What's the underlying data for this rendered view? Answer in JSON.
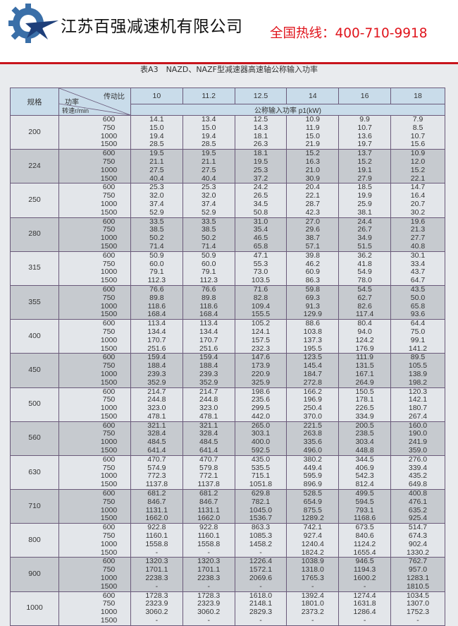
{
  "header": {
    "company": "江苏百强减速机有限公司",
    "hotline": "全国热线：400-710-9918",
    "brand_colors": {
      "logo": "#3a6fa8",
      "hotline": "#e0141c",
      "rule": "#c8141c"
    }
  },
  "table_title": "表A3　NAZD、NAZF型减速器高速轴公称输入功率",
  "table": {
    "col_size": "规格",
    "diag_ratio": "传动比",
    "diag_power": "功率",
    "diag_speed": "转速r/min",
    "ratios": [
      "10",
      "11.2",
      "12.5",
      "14",
      "16",
      "18"
    ],
    "unit_label": "公称输入功率 p1(kW)",
    "speeds": [
      "600",
      "750",
      "1000",
      "1500"
    ],
    "groups": [
      {
        "size": "200",
        "values": [
          [
            "14.1",
            "13.4",
            "12.5",
            "10.9",
            "9.9",
            "7.9"
          ],
          [
            "15.0",
            "15.0",
            "14.3",
            "11.9",
            "10.7",
            "8.5"
          ],
          [
            "19.4",
            "19.4",
            "18.1",
            "15.0",
            "13.6",
            "10.7"
          ],
          [
            "28.5",
            "28.5",
            "26.3",
            "21.9",
            "19.7",
            "15.6"
          ]
        ]
      },
      {
        "size": "224",
        "values": [
          [
            "19.5",
            "19.5",
            "18.1",
            "15.2",
            "13.7",
            "10.9"
          ],
          [
            "21.1",
            "21.1",
            "19.5",
            "16.3",
            "15.2",
            "12.0"
          ],
          [
            "27.5",
            "27.5",
            "25.3",
            "21.0",
            "19.1",
            "15.2"
          ],
          [
            "40.4",
            "40.4",
            "37.2",
            "30.9",
            "27.9",
            "22.1"
          ]
        ]
      },
      {
        "size": "250",
        "values": [
          [
            "25.3",
            "25.3",
            "24.2",
            "20.4",
            "18.5",
            "14.7"
          ],
          [
            "32.0",
            "32.0",
            "26.5",
            "22.1",
            "19.9",
            "16.4"
          ],
          [
            "37.4",
            "37.4",
            "34.5",
            "28.7",
            "25.9",
            "20.7"
          ],
          [
            "52.9",
            "52.9",
            "50.8",
            "42.3",
            "38.1",
            "30.2"
          ]
        ]
      },
      {
        "size": "280",
        "values": [
          [
            "33.5",
            "33.5",
            "31.0",
            "27.0",
            "24.4",
            "19.6"
          ],
          [
            "38.5",
            "38.5",
            "35.4",
            "29.6",
            "26.7",
            "21.3"
          ],
          [
            "50.2",
            "50.2",
            "46.5",
            "38.7",
            "34.9",
            "27.7"
          ],
          [
            "71.4",
            "71.4",
            "65.8",
            "57.1",
            "51.5",
            "40.8"
          ]
        ]
      },
      {
        "size": "315",
        "values": [
          [
            "50.9",
            "50.9",
            "47.1",
            "39.8",
            "36.2",
            "30.1"
          ],
          [
            "60.0",
            "60.0",
            "55.3",
            "46.2",
            "41.8",
            "33.4"
          ],
          [
            "79.1",
            "79.1",
            "73.0",
            "60.9",
            "54.9",
            "43.7"
          ],
          [
            "112.3",
            "112.3",
            "103.5",
            "86.3",
            "78.0",
            "64.7"
          ]
        ]
      },
      {
        "size": "355",
        "values": [
          [
            "76.6",
            "76.6",
            "71.6",
            "59.8",
            "54.5",
            "43.5"
          ],
          [
            "89.8",
            "89.8",
            "82.8",
            "69.3",
            "62.7",
            "50.0"
          ],
          [
            "118.6",
            "118.6",
            "109.4",
            "91.3",
            "82.6",
            "65.8"
          ],
          [
            "168.4",
            "168.4",
            "155.5",
            "129.9",
            "117.4",
            "93.6"
          ]
        ]
      },
      {
        "size": "400",
        "values": [
          [
            "113.4",
            "113.4",
            "105.2",
            "88.6",
            "80.4",
            "64.4"
          ],
          [
            "134.4",
            "134.4",
            "124.1",
            "103.8",
            "94.0",
            "75.0"
          ],
          [
            "170.7",
            "170.7",
            "157.5",
            "137.3",
            "124.2",
            "99.1"
          ],
          [
            "251.6",
            "251.6",
            "232.3",
            "195.5",
            "176.9",
            "141.2"
          ]
        ]
      },
      {
        "size": "450",
        "values": [
          [
            "159.4",
            "159.4",
            "147.6",
            "123.5",
            "111.9",
            "89.5"
          ],
          [
            "188.4",
            "188.4",
            "173.9",
            "145.4",
            "131.5",
            "105.5"
          ],
          [
            "239.3",
            "239.3",
            "220.9",
            "184.7",
            "167.1",
            "138.9"
          ],
          [
            "352.9",
            "352.9",
            "325.9",
            "272.8",
            "264.9",
            "198.2"
          ]
        ]
      },
      {
        "size": "500",
        "values": [
          [
            "214.7",
            "214.7",
            "198.6",
            "166.2",
            "150.5",
            "120.3"
          ],
          [
            "244.8",
            "244.8",
            "235.6",
            "196.9",
            "178.1",
            "142.1"
          ],
          [
            "323.0",
            "323.0",
            "299.5",
            "250.4",
            "226.5",
            "180.7"
          ],
          [
            "478.1",
            "478.1",
            "442.0",
            "370.0",
            "334.9",
            "267.4"
          ]
        ]
      },
      {
        "size": "560",
        "values": [
          [
            "321.1",
            "321.1",
            "265.0",
            "221.5",
            "200.5",
            "160.0"
          ],
          [
            "328.4",
            "328.4",
            "303.1",
            "263.8",
            "238.5",
            "190.0"
          ],
          [
            "484.5",
            "484.5",
            "400.0",
            "335.6",
            "303.4",
            "241.9"
          ],
          [
            "641.4",
            "641.4",
            "592.5",
            "496.0",
            "448.8",
            "359.0"
          ]
        ]
      },
      {
        "size": "630",
        "values": [
          [
            "470.7",
            "470.7",
            "435.0",
            "380.2",
            "344.5",
            "276.0"
          ],
          [
            "574.9",
            "579.8",
            "535.5",
            "449.4",
            "406.9",
            "339.4"
          ],
          [
            "772.3",
            "772.1",
            "715.1",
            "595.9",
            "542.3",
            "435.2"
          ],
          [
            "1137.8",
            "1137.8",
            "1051.8",
            "896.9",
            "812.4",
            "649.8"
          ]
        ]
      },
      {
        "size": "710",
        "values": [
          [
            "681.2",
            "681.2",
            "629.8",
            "528.5",
            "499.5",
            "400.8"
          ],
          [
            "846.7",
            "846.7",
            "782.1",
            "654.9",
            "594.5",
            "476.1"
          ],
          [
            "1131.1",
            "1131.1",
            "1045.0",
            "875.5",
            "793.1",
            "635.2"
          ],
          [
            "1662.0",
            "1662.0",
            "1536.7",
            "1289.2",
            "1168.6",
            "925.4"
          ]
        ]
      },
      {
        "size": "800",
        "values": [
          [
            "922.8",
            "922.8",
            "863.3",
            "742.1",
            "673.5",
            "514.7"
          ],
          [
            "1160.1",
            "1160.1",
            "1085.3",
            "927.4",
            "840.6",
            "674.3"
          ],
          [
            "1558.8",
            "1558.8",
            "1458.2",
            "1240.4",
            "1124.2",
            "902.4"
          ],
          [
            "-",
            "-",
            "-",
            "1824.2",
            "1655.4",
            "1330.2"
          ]
        ]
      },
      {
        "size": "900",
        "values": [
          [
            "1320.3",
            "1320.3",
            "1226.4",
            "1038.9",
            "946.5",
            "762.7"
          ],
          [
            "1701.1",
            "1701.1",
            "1572.1",
            "1318.0",
            "1194.3",
            "957.0"
          ],
          [
            "2238.3",
            "2238.3",
            "2069.6",
            "1765.3",
            "1600.2",
            "1283.1"
          ],
          [
            "-",
            "-",
            "-",
            "-",
            "-",
            "1810.5"
          ]
        ]
      },
      {
        "size": "1000",
        "values": [
          [
            "1728.3",
            "1728.3",
            "1618.0",
            "1392.4",
            "1274.4",
            "1034.5"
          ],
          [
            "2323.9",
            "2323.9",
            "2148.1",
            "1801.0",
            "1631.8",
            "1307.0"
          ],
          [
            "3060.2",
            "3060.2",
            "2829.3",
            "2373.2",
            "1286.4",
            "1752.3"
          ],
          [
            "-",
            "-",
            "-",
            "-",
            "-",
            "-"
          ]
        ]
      }
    ]
  }
}
